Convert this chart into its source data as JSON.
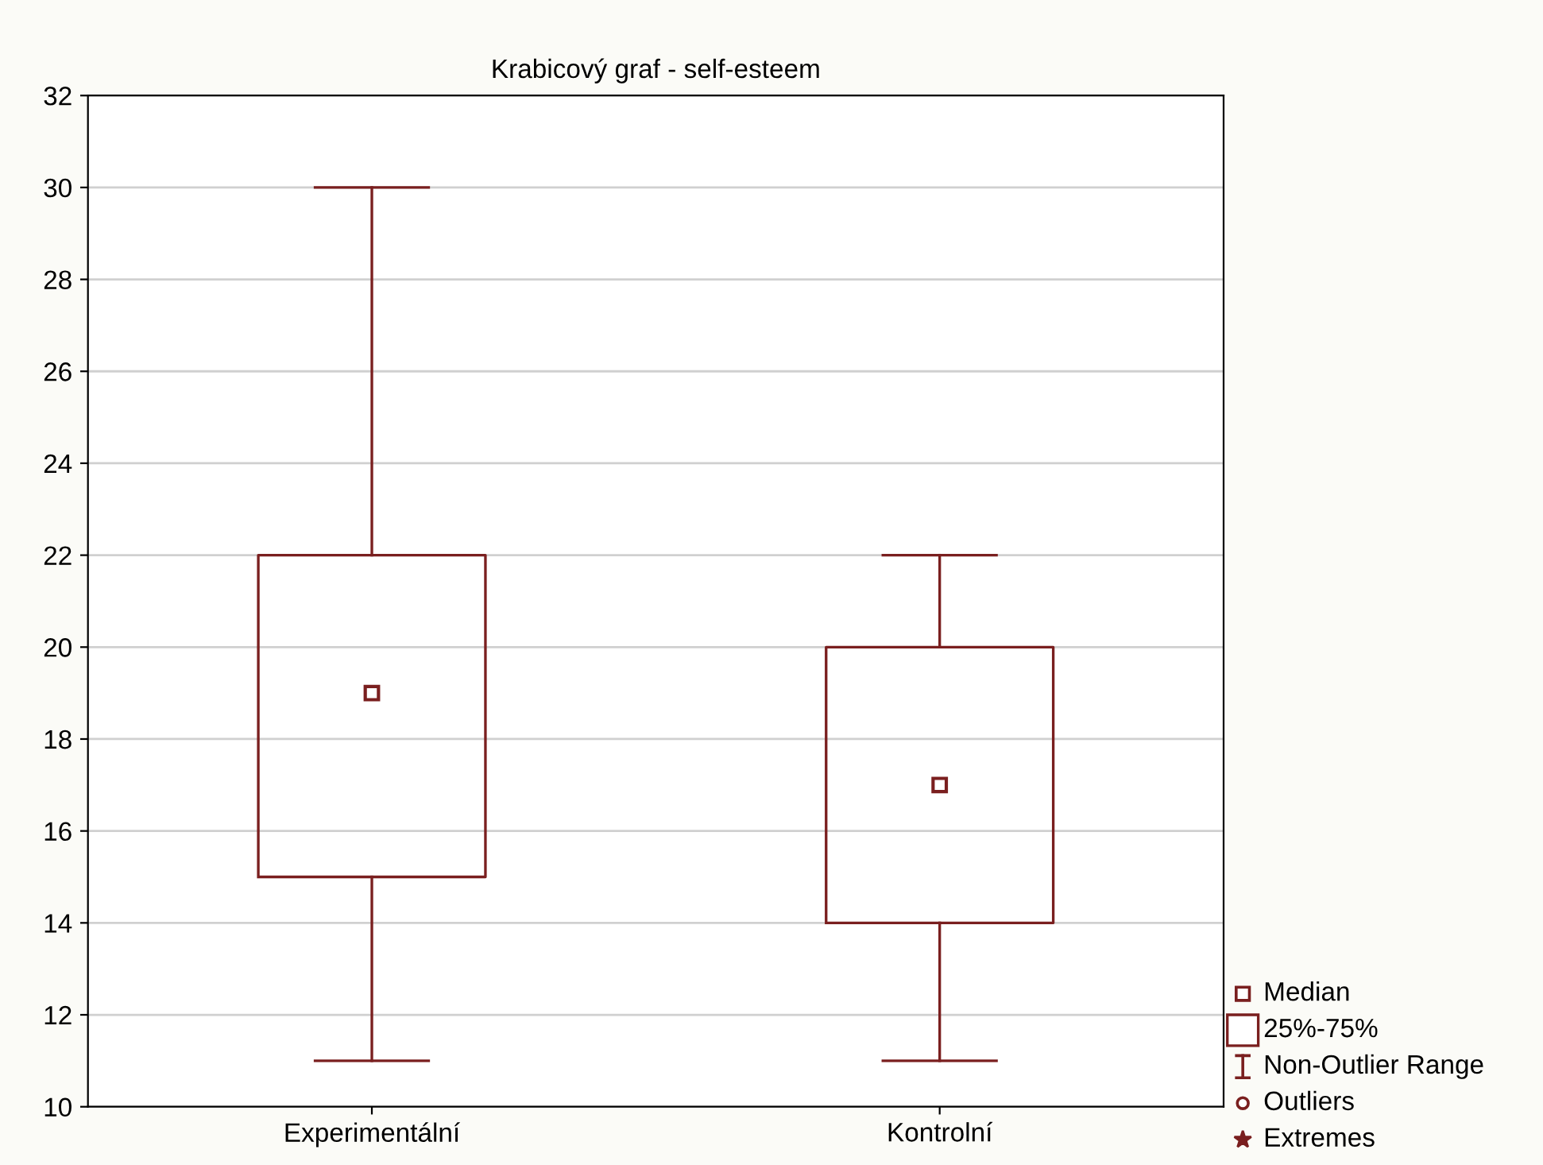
{
  "chart_data": {
    "type": "box",
    "title": "Krabicový graf - self-esteem",
    "categories": [
      "Experimentální",
      "Kontrolní"
    ],
    "boxes": [
      {
        "low": 11,
        "q1": 15,
        "median": 19,
        "q3": 22,
        "high": 30
      },
      {
        "low": 11,
        "q1": 14,
        "median": 17,
        "q3": 20,
        "high": 22
      }
    ],
    "color": "#7a1f1f",
    "ylim": [
      10,
      32
    ],
    "yticks": [
      10,
      12,
      14,
      16,
      18,
      20,
      22,
      24,
      26,
      28,
      30,
      32
    ],
    "grid": "y",
    "annotations": [
      "Median",
      "25%-75%",
      "Non-Outlier Range",
      "Outliers",
      "Extremes"
    ]
  }
}
